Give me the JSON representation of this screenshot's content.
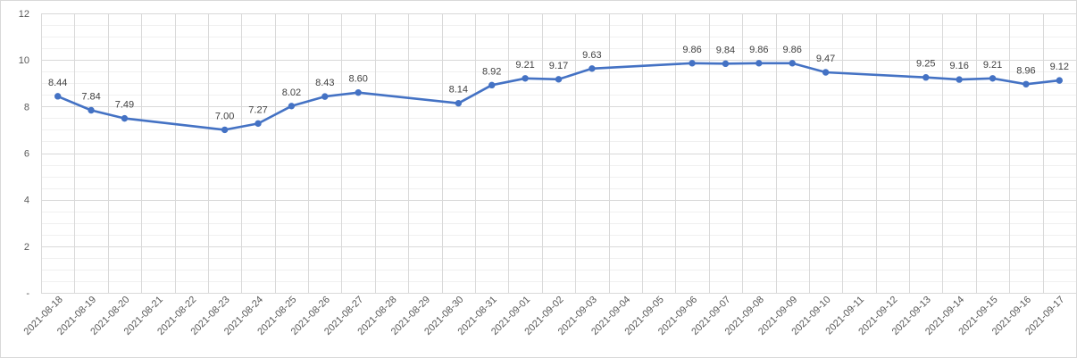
{
  "chart_data": {
    "type": "line",
    "title": "",
    "xlabel": "",
    "ylabel": "",
    "ylim": [
      0,
      12
    ],
    "y_ticks": [
      "-",
      "2",
      "4",
      "6",
      "8",
      "10",
      "12"
    ],
    "grid": true,
    "minor_grid": true,
    "legend": "none",
    "line_color": "#4472C4",
    "categories": [
      "2021-08-18",
      "2021-08-19",
      "2021-08-20",
      "2021-08-21",
      "2021-08-22",
      "2021-08-23",
      "2021-08-24",
      "2021-08-25",
      "2021-08-26",
      "2021-08-27",
      "2021-08-28",
      "2021-08-29",
      "2021-08-30",
      "2021-08-31",
      "2021-09-01",
      "2021-09-02",
      "2021-09-03",
      "2021-09-04",
      "2021-09-05",
      "2021-09-06",
      "2021-09-07",
      "2021-09-08",
      "2021-09-09",
      "2021-09-10",
      "2021-09-11",
      "2021-09-12",
      "2021-09-13",
      "2021-09-14",
      "2021-09-15",
      "2021-09-16",
      "2021-09-17"
    ],
    "series": [
      {
        "values": [
          8.44,
          7.84,
          7.49,
          null,
          null,
          7.0,
          7.27,
          8.02,
          8.43,
          8.6,
          null,
          null,
          8.14,
          8.92,
          9.21,
          9.17,
          9.63,
          null,
          null,
          9.86,
          9.84,
          9.86,
          9.86,
          9.47,
          null,
          null,
          9.25,
          9.16,
          9.21,
          8.96,
          9.12
        ],
        "labels": [
          "8.44",
          "7.84",
          "7.49",
          "",
          "",
          "7.00",
          "7.27",
          "8.02",
          "8.43",
          "8.60",
          "",
          "",
          "8.14",
          "8.92",
          "9.21",
          "9.17",
          "9.63",
          "",
          "",
          "9.86",
          "9.84",
          "9.86",
          "9.86",
          "9.47",
          "",
          "",
          "9.25",
          "9.16",
          "9.21",
          "8.96",
          "9.12"
        ]
      }
    ]
  }
}
